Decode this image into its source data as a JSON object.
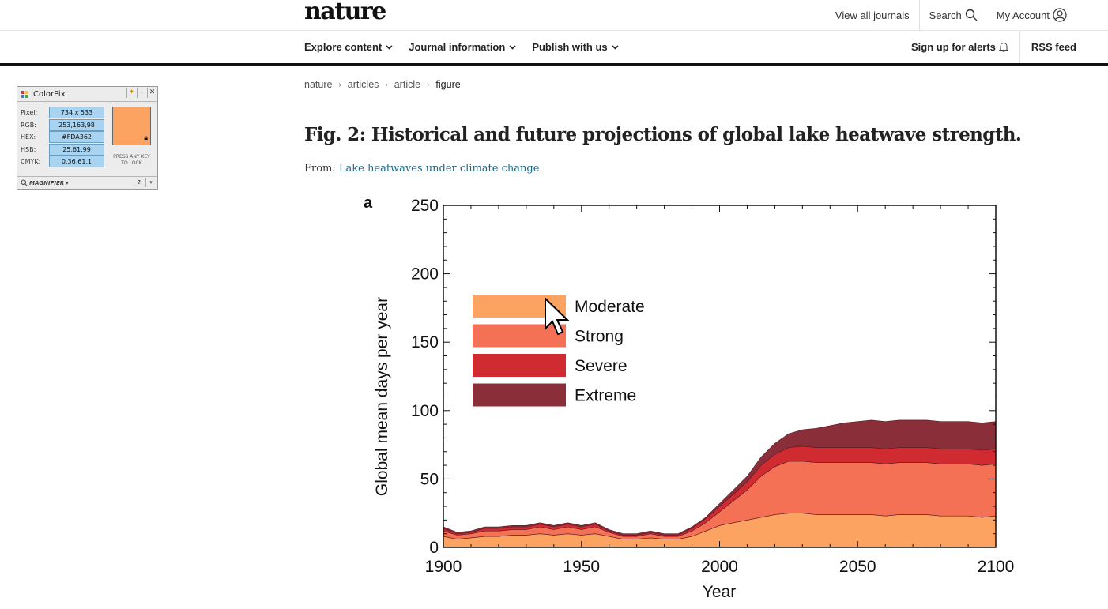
{
  "header": {
    "logo": "nature",
    "links": {
      "journals": "View all journals",
      "search": "Search",
      "account": "My Account"
    }
  },
  "nav": {
    "items": [
      {
        "label": "Explore content"
      },
      {
        "label": "Journal information"
      },
      {
        "label": "Publish with us"
      }
    ],
    "alerts": "Sign up for alerts",
    "rss": "RSS feed"
  },
  "breadcrumb": [
    "nature",
    "articles",
    "article",
    "figure"
  ],
  "figure": {
    "title": "Fig. 2: Historical and future projections of global lake heatwave strength.",
    "from_label": "From:",
    "from_link": "Lake heatwaves under climate change"
  },
  "colorpix": {
    "title": "ColorPix",
    "rows": [
      {
        "label": "Pixel:",
        "value": "734 x 533"
      },
      {
        "label": "RGB:",
        "value": "253,163,98"
      },
      {
        "label": "HEX:",
        "value": "#FDA362"
      },
      {
        "label": "HSB:",
        "value": "25,61,99"
      },
      {
        "label": "CMYK:",
        "value": "0,36,61,1"
      }
    ],
    "swatch_color": "#FDA362",
    "press_key": "PRESS ANY KEY TO LOCK",
    "magnifier": "MAGNIFIER",
    "help": "?"
  },
  "chart_data": {
    "type": "area",
    "stacked": true,
    "panel_label": "a",
    "xlabel": "Year",
    "ylabel": "Global mean days per year",
    "xlim": [
      1900,
      2100
    ],
    "ylim": [
      0,
      250
    ],
    "xticks": [
      1900,
      1950,
      2000,
      2050,
      2100
    ],
    "yticks": [
      0,
      50,
      100,
      150,
      200,
      250
    ],
    "legend_position": "top-left",
    "x": [
      1900,
      1905,
      1910,
      1915,
      1920,
      1925,
      1930,
      1935,
      1940,
      1945,
      1950,
      1955,
      1960,
      1965,
      1970,
      1975,
      1980,
      1985,
      1990,
      1995,
      2000,
      2005,
      2010,
      2015,
      2020,
      2025,
      2030,
      2035,
      2040,
      2045,
      2050,
      2055,
      2060,
      2065,
      2070,
      2075,
      2080,
      2085,
      2090,
      2095,
      2100
    ],
    "series": [
      {
        "name": "Moderate",
        "color": "#FCA361",
        "values": [
          8,
          6,
          7,
          8,
          8,
          9,
          9,
          10,
          9,
          10,
          9,
          10,
          8,
          6,
          6,
          7,
          6,
          6,
          8,
          12,
          16,
          18,
          20,
          22,
          24,
          25,
          25,
          24,
          24,
          24,
          24,
          24,
          23,
          24,
          24,
          24,
          23,
          23,
          23,
          22,
          23
        ]
      },
      {
        "name": "Strong",
        "color": "#F57155",
        "values": [
          4,
          3,
          3,
          4,
          4,
          4,
          4,
          5,
          4,
          5,
          4,
          5,
          3,
          2,
          2,
          3,
          2,
          2,
          4,
          6,
          10,
          16,
          22,
          30,
          35,
          38,
          38,
          38,
          38,
          38,
          38,
          38,
          38,
          38,
          38,
          38,
          38,
          38,
          38,
          38,
          38
        ]
      },
      {
        "name": "Severe",
        "color": "#D12B32",
        "values": [
          2,
          1,
          1,
          2,
          2,
          2,
          2,
          2,
          2,
          2,
          2,
          2,
          1,
          1,
          1,
          1,
          1,
          1,
          2,
          3,
          4,
          5,
          6,
          8,
          9,
          10,
          11,
          11,
          11,
          11,
          11,
          11,
          11,
          11,
          11,
          11,
          11,
          11,
          11,
          11,
          11
        ]
      },
      {
        "name": "Extreme",
        "color": "#8A2F3A",
        "values": [
          1,
          1,
          1,
          1,
          1,
          1,
          1,
          1,
          1,
          1,
          1,
          1,
          1,
          1,
          1,
          1,
          1,
          1,
          1,
          1,
          2,
          3,
          4,
          6,
          8,
          10,
          12,
          14,
          16,
          18,
          19,
          20,
          20,
          20,
          20,
          20,
          20,
          20,
          20,
          20,
          20
        ]
      }
    ]
  }
}
